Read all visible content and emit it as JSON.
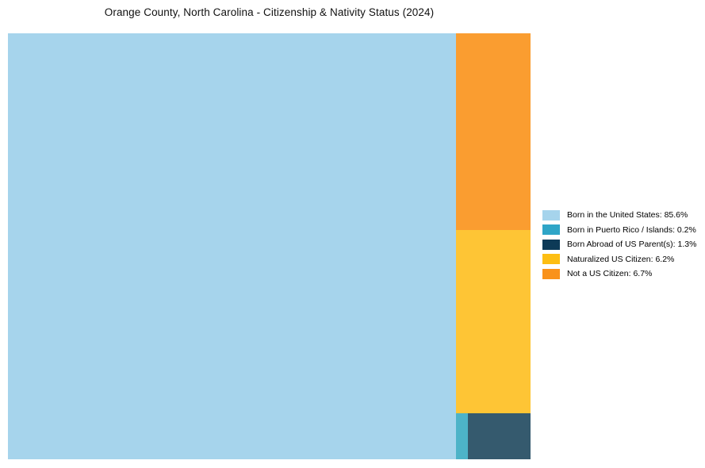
{
  "title": "Orange County, North Carolina - Citizenship & Nativity Status (2024)",
  "chart_data": {
    "type": "treemap",
    "title": "Orange County, North Carolina - Citizenship & Nativity Status (2024)",
    "unit": "%",
    "legend_position": "right",
    "categories": [
      "Born in the United States",
      "Born in Puerto Rico / Islands",
      "Born Abroad of US Parent(s)",
      "Naturalized US Citizen",
      "Not a US Citizen"
    ],
    "values": [
      85.6,
      0.2,
      1.3,
      6.2,
      6.7
    ],
    "tiles": [
      {
        "name": "Born in the United States",
        "value": 85.6,
        "color": "#a6d4ec"
      },
      {
        "name": "Born in Puerto Rico / Islands",
        "value": 0.2,
        "color": "#4db3c8"
      },
      {
        "name": "Born Abroad of US Parent(s)",
        "value": 1.3,
        "color": "#355a6e"
      },
      {
        "name": "Naturalized US Citizen",
        "value": 6.2,
        "color": "#fec535"
      },
      {
        "name": "Not a US Citizen",
        "value": 6.7,
        "color": "#fa9d30"
      }
    ],
    "legend": [
      {
        "label": "Born in the United States: 85.6%",
        "color": "#a6d4ec"
      },
      {
        "label": "Born in Puerto Rico / Islands: 0.2%",
        "color": "#2fa5c7"
      },
      {
        "label": "Born Abroad of US Parent(s): 1.3%",
        "color": "#0d3a57"
      },
      {
        "label": "Naturalized US Citizen: 6.2%",
        "color": "#fdbe13"
      },
      {
        "label": "Not a US Citizen: 6.7%",
        "color": "#f9921b"
      }
    ]
  }
}
